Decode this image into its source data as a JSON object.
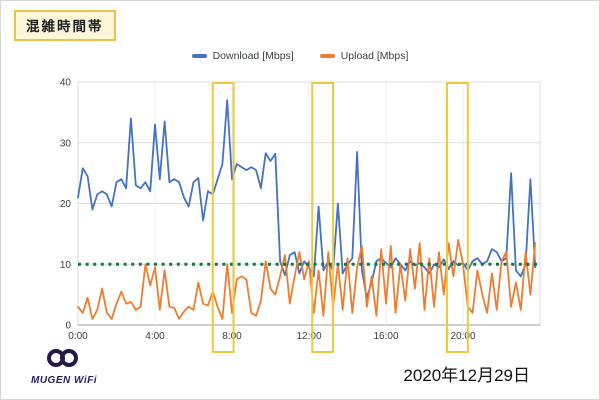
{
  "title_box": {
    "label": "混雑時間帯"
  },
  "footer": {
    "brand": "MUGEN WiFi",
    "date": "2020年12月29日"
  },
  "chart_data": {
    "type": "line",
    "title": "混雑時間帯",
    "xlabel": "",
    "ylabel": "",
    "ylim": [
      0,
      40
    ],
    "yticks": [
      0,
      10,
      20,
      30,
      40
    ],
    "xticks": [
      "0:00",
      "4:00",
      "8:00",
      "12:00",
      "16:00",
      "20:00"
    ],
    "x_range_hours": [
      0,
      24
    ],
    "grid": true,
    "legend_position": "top",
    "threshold": {
      "value": 10,
      "style": "dotted",
      "color": "#0d7a3f"
    },
    "highlight_color": "#eec83f",
    "highlights": [
      {
        "from": "7:00",
        "to": "8:05"
      },
      {
        "from": "12:10",
        "to": "13:15"
      },
      {
        "from": "19:10",
        "to": "20:15"
      }
    ],
    "x": [
      "0:00",
      "0:15",
      "0:30",
      "0:45",
      "1:00",
      "1:15",
      "1:30",
      "1:45",
      "2:00",
      "2:15",
      "2:30",
      "2:45",
      "3:00",
      "3:15",
      "3:30",
      "3:45",
      "4:00",
      "4:15",
      "4:30",
      "4:45",
      "5:00",
      "5:15",
      "5:30",
      "5:45",
      "6:00",
      "6:15",
      "6:30",
      "6:45",
      "7:00",
      "7:15",
      "7:30",
      "7:45",
      "8:00",
      "8:15",
      "8:30",
      "8:45",
      "9:00",
      "9:15",
      "9:30",
      "9:45",
      "10:00",
      "10:15",
      "10:30",
      "10:45",
      "11:00",
      "11:15",
      "11:30",
      "11:45",
      "12:00",
      "12:15",
      "12:30",
      "12:45",
      "13:00",
      "13:15",
      "13:30",
      "13:45",
      "14:00",
      "14:15",
      "14:30",
      "14:45",
      "15:00",
      "15:15",
      "15:30",
      "15:45",
      "16:00",
      "16:15",
      "16:30",
      "16:45",
      "17:00",
      "17:15",
      "17:30",
      "17:45",
      "18:00",
      "18:15",
      "18:30",
      "18:45",
      "19:00",
      "19:15",
      "19:30",
      "19:45",
      "20:00",
      "20:15",
      "20:30",
      "20:45",
      "21:00",
      "21:15",
      "21:30",
      "21:45",
      "22:00",
      "22:15",
      "22:30",
      "22:45",
      "23:00",
      "23:15",
      "23:30",
      "23:45"
    ],
    "series": [
      {
        "name": "Download [Mbps]",
        "color": "#4472c4",
        "values": [
          21,
          25.8,
          24.5,
          19,
          21.5,
          22,
          21.5,
          19.5,
          23.5,
          24,
          22.5,
          34,
          23,
          22.5,
          23.5,
          22,
          33,
          24,
          33.5,
          23.5,
          24,
          23.5,
          21,
          19.5,
          23.5,
          24.2,
          17.2,
          22,
          21.5,
          24,
          26.5,
          37,
          24,
          26.5,
          26,
          25.5,
          26,
          25.5,
          22.5,
          28.3,
          27,
          28.2,
          10.5,
          8.2,
          11.5,
          12,
          8.5,
          10.5,
          9.5,
          8,
          19.5,
          9,
          10.5,
          9,
          20,
          8.5,
          10,
          11,
          28.5,
          9,
          4.5,
          7,
          10.5,
          11,
          10.2,
          9.5,
          11,
          10,
          9,
          10.5,
          9.8,
          10.2,
          9.5,
          8.5,
          10,
          9.5,
          10.8,
          9.2,
          10.5,
          9.8,
          10.2,
          9,
          10.5,
          11,
          10,
          10.5,
          12.5,
          12,
          10.5,
          11,
          25,
          9,
          8,
          10,
          24,
          9.5
        ]
      },
      {
        "name": "Upload [Mbps]",
        "color": "#ed7d31",
        "values": [
          3,
          2,
          4.5,
          1,
          2.5,
          6,
          2,
          1,
          3.5,
          5.5,
          3.5,
          3.8,
          2.5,
          3,
          10,
          6.5,
          9.5,
          2.5,
          9,
          3,
          2.8,
          1,
          2.2,
          3,
          2.5,
          7,
          3.5,
          3.2,
          5.5,
          3,
          1,
          10,
          2,
          7.5,
          8,
          7.5,
          2,
          1.5,
          4,
          10.5,
          6,
          5,
          8,
          11.5,
          3.5,
          8,
          12,
          7.5,
          10.5,
          2,
          9,
          1.5,
          12,
          3,
          10,
          2.5,
          11,
          2,
          9.5,
          13,
          3,
          8,
          1.5,
          12.5,
          3.5,
          13,
          2,
          10,
          4,
          12.5,
          6,
          13.5,
          2.5,
          11,
          3,
          12,
          5,
          13.5,
          8,
          14,
          10,
          3,
          2,
          9,
          5,
          2,
          8.5,
          2.5,
          10.5,
          12,
          3,
          7,
          2.5,
          12,
          5,
          13.5
        ]
      }
    ]
  }
}
